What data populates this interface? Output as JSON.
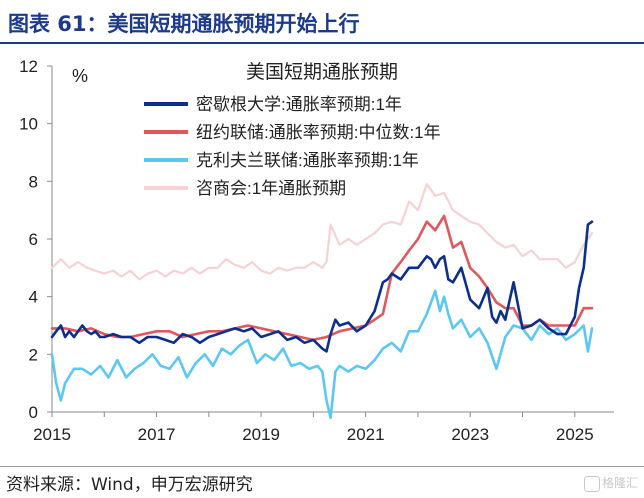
{
  "header": {
    "title": "图表 61：美国短期通胀预期开始上行"
  },
  "footer": {
    "source": "资料来源：Wind，申万宏源研究",
    "watermark": "格隆汇"
  },
  "chart_data": {
    "type": "line",
    "title": "美国短期通胀预期",
    "ylabel": "%",
    "xlabel": "",
    "ylim": [
      0,
      12
    ],
    "xlim": [
      2015,
      2025.75
    ],
    "yticks": [
      0,
      2,
      4,
      6,
      8,
      10,
      12
    ],
    "xticks": [
      "2015",
      "2017",
      "2019",
      "2021",
      "2023",
      "2025"
    ],
    "grid": false,
    "legend": "top-center",
    "series": [
      {
        "name": "密歇根大学:通胀率预期:1年",
        "color": "#0d2f8c",
        "x": [
          2015.0,
          2015.08,
          2015.17,
          2015.25,
          2015.33,
          2015.42,
          2015.5,
          2015.58,
          2015.67,
          2015.75,
          2015.83,
          2015.92,
          2016.0,
          2016.17,
          2016.33,
          2016.5,
          2016.67,
          2016.83,
          2017.0,
          2017.17,
          2017.33,
          2017.5,
          2017.67,
          2017.83,
          2018.0,
          2018.17,
          2018.33,
          2018.5,
          2018.67,
          2018.83,
          2019.0,
          2019.17,
          2019.33,
          2019.5,
          2019.67,
          2019.83,
          2020.0,
          2020.17,
          2020.25,
          2020.33,
          2020.42,
          2020.5,
          2020.67,
          2020.83,
          2021.0,
          2021.17,
          2021.33,
          2021.42,
          2021.5,
          2021.67,
          2021.83,
          2022.0,
          2022.17,
          2022.25,
          2022.33,
          2022.42,
          2022.5,
          2022.58,
          2022.67,
          2022.83,
          2023.0,
          2023.17,
          2023.33,
          2023.42,
          2023.5,
          2023.58,
          2023.67,
          2023.83,
          2024.0,
          2024.17,
          2024.33,
          2024.5,
          2024.67,
          2024.83,
          2025.0,
          2025.08,
          2025.17,
          2025.25,
          2025.33
        ],
        "values": [
          2.6,
          2.8,
          3.0,
          2.6,
          2.8,
          2.6,
          2.8,
          3.0,
          2.8,
          2.7,
          2.8,
          2.6,
          2.6,
          2.7,
          2.6,
          2.6,
          2.4,
          2.6,
          2.6,
          2.5,
          2.4,
          2.7,
          2.6,
          2.4,
          2.6,
          2.7,
          2.8,
          2.9,
          2.8,
          2.9,
          2.6,
          2.7,
          2.8,
          2.5,
          2.6,
          2.4,
          2.5,
          2.2,
          2.1,
          2.7,
          3.2,
          3.0,
          3.1,
          2.8,
          3.0,
          3.5,
          4.5,
          4.6,
          4.8,
          4.6,
          5.0,
          5.0,
          5.4,
          5.3,
          5.0,
          5.3,
          5.4,
          4.6,
          4.5,
          5.0,
          3.9,
          3.6,
          4.3,
          3.3,
          3.1,
          3.5,
          3.2,
          4.5,
          2.9,
          3.0,
          3.2,
          2.9,
          2.7,
          2.7,
          3.3,
          4.3,
          5.0,
          6.5,
          6.6
        ]
      },
      {
        "name": "纽约联储:通胀率预期:中位数:1年",
        "color": "#e0585b",
        "x": [
          2015.0,
          2015.25,
          2015.5,
          2015.75,
          2016.0,
          2016.25,
          2016.5,
          2016.75,
          2017.0,
          2017.25,
          2017.5,
          2017.75,
          2018.0,
          2018.25,
          2018.5,
          2018.75,
          2019.0,
          2019.25,
          2019.5,
          2019.75,
          2020.0,
          2020.25,
          2020.5,
          2020.75,
          2021.0,
          2021.17,
          2021.33,
          2021.5,
          2021.67,
          2021.83,
          2022.0,
          2022.17,
          2022.33,
          2022.5,
          2022.67,
          2022.83,
          2023.0,
          2023.17,
          2023.33,
          2023.5,
          2023.67,
          2023.83,
          2024.0,
          2024.17,
          2024.33,
          2024.5,
          2024.67,
          2024.83,
          2025.0,
          2025.17,
          2025.33
        ],
        "values": [
          2.9,
          2.9,
          2.8,
          2.9,
          2.7,
          2.6,
          2.6,
          2.7,
          2.8,
          2.8,
          2.6,
          2.7,
          2.8,
          2.8,
          2.9,
          3.0,
          2.9,
          2.8,
          2.7,
          2.6,
          2.5,
          2.6,
          2.8,
          2.9,
          3.0,
          3.2,
          3.4,
          4.8,
          5.2,
          5.6,
          6.0,
          6.6,
          6.3,
          6.8,
          5.7,
          5.9,
          5.0,
          4.7,
          4.3,
          3.8,
          3.6,
          3.6,
          3.0,
          3.0,
          3.2,
          3.0,
          3.0,
          3.0,
          3.0,
          3.6,
          3.6
        ]
      },
      {
        "name": "克利夫兰联储:通胀率预期:1年",
        "color": "#5cc8f2",
        "x": [
          2015.0,
          2015.08,
          2015.17,
          2015.25,
          2015.42,
          2015.58,
          2015.75,
          2015.92,
          2016.08,
          2016.25,
          2016.42,
          2016.58,
          2016.75,
          2016.92,
          2017.08,
          2017.25,
          2017.42,
          2017.58,
          2017.75,
          2017.92,
          2018.08,
          2018.25,
          2018.42,
          2018.58,
          2018.75,
          2018.92,
          2019.08,
          2019.25,
          2019.42,
          2019.58,
          2019.75,
          2019.92,
          2020.08,
          2020.17,
          2020.25,
          2020.33,
          2020.42,
          2020.5,
          2020.67,
          2020.83,
          2021.0,
          2021.17,
          2021.33,
          2021.5,
          2021.67,
          2021.83,
          2022.0,
          2022.17,
          2022.33,
          2022.42,
          2022.5,
          2022.58,
          2022.67,
          2022.83,
          2023.0,
          2023.17,
          2023.33,
          2023.5,
          2023.67,
          2023.83,
          2024.0,
          2024.17,
          2024.33,
          2024.5,
          2024.67,
          2024.83,
          2025.0,
          2025.17,
          2025.25,
          2025.33
        ],
        "values": [
          2.0,
          1.0,
          0.4,
          1.0,
          1.5,
          1.5,
          1.3,
          1.6,
          1.2,
          1.8,
          1.2,
          1.5,
          1.7,
          2.0,
          1.6,
          1.5,
          1.9,
          1.2,
          1.7,
          2.0,
          1.6,
          2.2,
          2.0,
          2.3,
          2.5,
          1.7,
          2.0,
          1.8,
          2.2,
          1.6,
          1.7,
          1.5,
          1.6,
          1.4,
          0.4,
          -0.2,
          1.4,
          1.6,
          1.4,
          1.6,
          1.5,
          1.8,
          2.2,
          2.4,
          2.1,
          2.8,
          2.8,
          3.4,
          4.2,
          3.5,
          4.0,
          3.4,
          2.9,
          3.2,
          2.6,
          2.9,
          2.4,
          1.5,
          2.6,
          3.0,
          2.9,
          2.5,
          3.0,
          2.7,
          2.9,
          2.5,
          2.7,
          3.0,
          2.1,
          2.9
        ]
      },
      {
        "name": "咨商会:1年通胀预期",
        "color": "#f6d2d4",
        "x": [
          2015.0,
          2015.17,
          2015.33,
          2015.5,
          2015.67,
          2015.83,
          2016.0,
          2016.17,
          2016.33,
          2016.5,
          2016.67,
          2016.83,
          2017.0,
          2017.17,
          2017.33,
          2017.5,
          2017.67,
          2017.83,
          2018.0,
          2018.17,
          2018.33,
          2018.5,
          2018.67,
          2018.83,
          2019.0,
          2019.17,
          2019.33,
          2019.5,
          2019.67,
          2019.83,
          2020.0,
          2020.17,
          2020.25,
          2020.33,
          2020.5,
          2020.67,
          2020.83,
          2021.0,
          2021.17,
          2021.33,
          2021.5,
          2021.67,
          2021.83,
          2022.0,
          2022.17,
          2022.33,
          2022.5,
          2022.67,
          2022.83,
          2023.0,
          2023.17,
          2023.33,
          2023.5,
          2023.67,
          2023.83,
          2024.0,
          2024.17,
          2024.33,
          2024.5,
          2024.67,
          2024.83,
          2025.0,
          2025.17,
          2025.33
        ],
        "values": [
          5.0,
          5.3,
          5.0,
          5.2,
          5.0,
          4.9,
          4.8,
          4.9,
          4.7,
          4.9,
          4.6,
          4.8,
          4.9,
          4.7,
          4.9,
          4.8,
          5.0,
          4.8,
          5.0,
          5.0,
          5.3,
          5.1,
          5.0,
          5.2,
          4.9,
          4.8,
          5.0,
          4.9,
          5.0,
          5.0,
          5.2,
          5.0,
          5.2,
          6.5,
          5.8,
          6.0,
          5.8,
          6.0,
          6.2,
          6.5,
          6.6,
          6.5,
          7.3,
          7.0,
          7.9,
          7.5,
          7.6,
          7.0,
          6.8,
          6.6,
          6.5,
          6.2,
          5.9,
          5.7,
          5.8,
          5.4,
          5.6,
          5.3,
          5.3,
          5.3,
          5.0,
          5.2,
          5.8,
          6.2
        ]
      }
    ]
  }
}
